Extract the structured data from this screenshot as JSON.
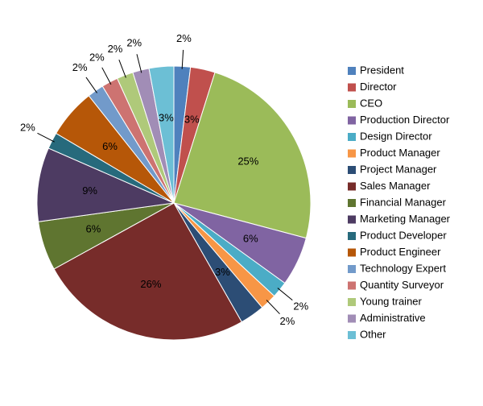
{
  "chart_data": {
    "type": "pie",
    "categories": [
      "President",
      "Director",
      "CEO",
      "Production Director",
      "Design Director",
      "Product Manager",
      "Project Manager",
      "Sales Manager",
      "Financial Manager",
      "Marketing Manager",
      "Product Developer",
      "Product Engineer",
      "Technology Expert",
      "Quantity Surveyor",
      "Young trainer",
      "Administrative",
      "Other"
    ],
    "values": [
      2,
      3,
      25,
      6,
      2,
      2,
      3,
      26,
      6,
      9,
      2,
      6,
      2,
      2,
      2,
      2,
      3
    ],
    "value_labels": [
      "2%",
      "3%",
      "25%",
      "6%",
      "2%",
      "2%",
      "3%",
      "26%",
      "6%",
      "9%",
      "2%",
      "6%",
      "2%",
      "2%",
      "2%",
      "2%",
      "3%"
    ],
    "colors": [
      "#4F81BD",
      "#C0504D",
      "#9BBB59",
      "#8064A2",
      "#4BACC6",
      "#F79646",
      "#2C4D75",
      "#772C2A",
      "#5F7530",
      "#4D3B62",
      "#276A7C",
      "#B65708",
      "#729ACA",
      "#CD7371",
      "#AFC97A",
      "#A18DB6",
      "#6CBFD5"
    ],
    "legend": "right"
  }
}
